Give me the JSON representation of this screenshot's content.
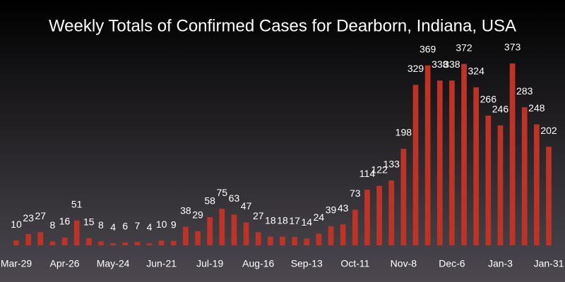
{
  "chart_data": {
    "type": "bar",
    "title": "Weekly Totals of Confirmed Cases for Dearborn, Indiana, USA",
    "categories": [
      "Mar-29",
      null,
      null,
      null,
      "Apr-26",
      null,
      null,
      null,
      "May-24",
      null,
      null,
      null,
      "Jun-21",
      null,
      null,
      null,
      "Jul-19",
      null,
      null,
      null,
      "Aug-16",
      null,
      null,
      null,
      "Sep-13",
      null,
      null,
      null,
      "Oct-11",
      null,
      null,
      null,
      "Nov-8",
      null,
      null,
      null,
      "Dec-6",
      null,
      null,
      null,
      "Jan-3",
      null,
      null,
      null,
      "Jan-31"
    ],
    "values": [
      10,
      23,
      27,
      8,
      16,
      51,
      15,
      8,
      4,
      6,
      7,
      4,
      10,
      9,
      38,
      29,
      58,
      75,
      63,
      47,
      27,
      18,
      18,
      17,
      14,
      24,
      39,
      43,
      73,
      114,
      122,
      133,
      198,
      329,
      369,
      338,
      338,
      372,
      324,
      266,
      246,
      373,
      283,
      248,
      202
    ],
    "color": "#bf3326"
  }
}
